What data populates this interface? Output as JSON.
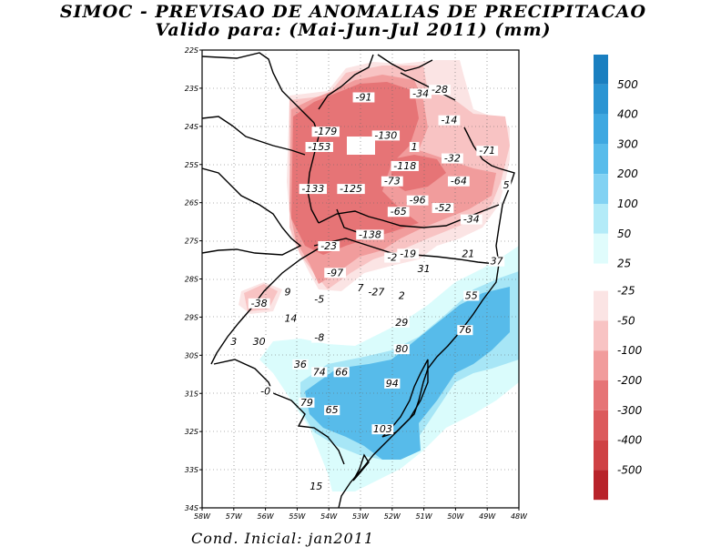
{
  "title_line1": "SIMOC - PREVISAO DE ANOMALIAS DE PRECIPITACAO",
  "title_line2": "Valido para: (Mai-Jun-Jul 2011) (mm)",
  "footer": "Cond. Inicial: jan2011",
  "lat_labels": [
    "22S",
    "23S",
    "24S",
    "25S",
    "26S",
    "27S",
    "28S",
    "29S",
    "30S",
    "31S",
    "32S",
    "33S",
    "34S"
  ],
  "lon_labels": [
    "58W",
    "57W",
    "56W",
    "55W",
    "54W",
    "53W",
    "52W",
    "51W",
    "50W",
    "49W",
    "48W"
  ],
  "colorbar": {
    "positive_labels": [
      "500",
      "400",
      "300",
      "200",
      "100",
      "50",
      "25"
    ],
    "negative_labels": [
      "-25",
      "-50",
      "-100",
      "-200",
      "-300",
      "-400",
      "-500"
    ],
    "positive_colors": [
      "#1a7fc0",
      "#2b95d3",
      "#3ea8e1",
      "#58bceb",
      "#82d2f3",
      "#b3ebf8",
      "#e0fcfc"
    ],
    "negative_colors": [
      "#fbe4e4",
      "#f8c3c3",
      "#f19c9c",
      "#e67476",
      "#dc5a5c",
      "#cf4144",
      "#b8232a"
    ]
  },
  "value_labels": [
    {
      "text": "-91",
      "lon": -52.9,
      "lat": -23.3
    },
    {
      "text": "-34",
      "lon": -51.1,
      "lat": -23.2
    },
    {
      "text": "-28",
      "lon": -50.5,
      "lat": -23.1
    },
    {
      "text": "-14",
      "lon": -50.2,
      "lat": -23.9
    },
    {
      "text": "-179",
      "lon": -54.1,
      "lat": -24.2
    },
    {
      "text": "-153",
      "lon": -54.3,
      "lat": -24.6
    },
    {
      "text": "-130",
      "lon": -52.2,
      "lat": -24.3
    },
    {
      "text": "1",
      "lon": -51.3,
      "lat": -24.6
    },
    {
      "text": "-71",
      "lon": -49.0,
      "lat": -24.7
    },
    {
      "text": "-32",
      "lon": -50.1,
      "lat": -24.9
    },
    {
      "text": "-118",
      "lon": -51.6,
      "lat": -25.1
    },
    {
      "text": "-64",
      "lon": -49.9,
      "lat": -25.5
    },
    {
      "text": "5",
      "lon": -48.4,
      "lat": -25.6
    },
    {
      "text": "-73",
      "lon": -52.0,
      "lat": -25.5
    },
    {
      "text": "-133",
      "lon": -54.5,
      "lat": -25.7
    },
    {
      "text": "-125",
      "lon": -53.3,
      "lat": -25.7
    },
    {
      "text": "-96",
      "lon": -51.2,
      "lat": -26.0
    },
    {
      "text": "-52",
      "lon": -50.4,
      "lat": -26.2
    },
    {
      "text": "-65",
      "lon": -51.8,
      "lat": -26.3
    },
    {
      "text": "-34",
      "lon": -49.5,
      "lat": -26.5
    },
    {
      "text": "-138",
      "lon": -52.7,
      "lat": -26.9
    },
    {
      "text": "-23",
      "lon": -54.0,
      "lat": -27.2
    },
    {
      "text": "-2",
      "lon": -52.0,
      "lat": -27.5
    },
    {
      "text": "-19",
      "lon": -51.5,
      "lat": -27.4
    },
    {
      "text": "21",
      "lon": -49.6,
      "lat": -27.4
    },
    {
      "text": "37",
      "lon": -48.7,
      "lat": -27.6
    },
    {
      "text": "31",
      "lon": -51.0,
      "lat": -27.8
    },
    {
      "text": "-97",
      "lon": -53.8,
      "lat": -27.9
    },
    {
      "text": "9",
      "lon": -55.3,
      "lat": -28.4
    },
    {
      "text": "7",
      "lon": -53.0,
      "lat": -28.3
    },
    {
      "text": "-27",
      "lon": -52.5,
      "lat": -28.4
    },
    {
      "text": "2",
      "lon": -51.7,
      "lat": -28.5
    },
    {
      "text": "55",
      "lon": -49.5,
      "lat": -28.5
    },
    {
      "text": "-38",
      "lon": -56.2,
      "lat": -28.7
    },
    {
      "text": "-5",
      "lon": -54.3,
      "lat": -28.6
    },
    {
      "text": "14",
      "lon": -55.2,
      "lat": -29.1
    },
    {
      "text": "29",
      "lon": -51.7,
      "lat": -29.2
    },
    {
      "text": "76",
      "lon": -49.7,
      "lat": -29.4
    },
    {
      "text": "-8",
      "lon": -54.3,
      "lat": -29.6
    },
    {
      "text": "3",
      "lon": -57.0,
      "lat": -29.7
    },
    {
      "text": "30",
      "lon": -56.2,
      "lat": -29.7
    },
    {
      "text": "80",
      "lon": -51.7,
      "lat": -29.9
    },
    {
      "text": "36",
      "lon": -54.9,
      "lat": -30.3
    },
    {
      "text": "74",
      "lon": -54.3,
      "lat": -30.5
    },
    {
      "text": "66",
      "lon": -53.6,
      "lat": -30.5
    },
    {
      "text": "94",
      "lon": -52.0,
      "lat": -30.8
    },
    {
      "text": "-0",
      "lon": -56.0,
      "lat": -31.0
    },
    {
      "text": "79",
      "lon": -54.7,
      "lat": -31.3
    },
    {
      "text": "65",
      "lon": -53.9,
      "lat": -31.5
    },
    {
      "text": "103",
      "lon": -52.3,
      "lat": -32.0
    },
    {
      "text": "15",
      "lon": -54.4,
      "lat": -33.5
    }
  ]
}
